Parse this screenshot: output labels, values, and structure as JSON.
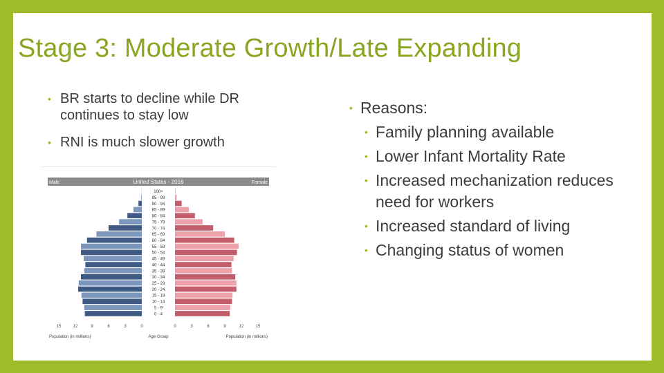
{
  "slide": {
    "title": "Stage 3: Moderate Growth/Late Expanding",
    "left_bullets": [
      "BR starts to decline while DR continues to stay low",
      "RNI is much slower growth"
    ],
    "right_heading": "Reasons:",
    "right_bullets": [
      "Family planning available",
      "Lower Infant Mortality Rate",
      "Increased mechanization reduces need for workers",
      "Increased standard of living",
      "Changing status of women"
    ],
    "bullet_glyph": "•"
  },
  "colors": {
    "frame": "#9fba2a",
    "title": "#8aa51f",
    "male_dark": "#3e5a85",
    "male_light": "#7d97bc",
    "female_dark": "#c25d6a",
    "female_light": "#eda2ab",
    "header_bar": "#8a8a8a"
  },
  "chart_data": {
    "type": "bar",
    "orientation": "horizontal-population-pyramid",
    "title": "United States - 2016",
    "left_label": "Male",
    "right_label": "Female",
    "xlabel_left": "Population (in millions)",
    "xlabel_center": "Age Group",
    "xlabel_right": "Population (in millions)",
    "x_ticks_left": [
      "15",
      "12",
      "9",
      "6",
      "3",
      "0"
    ],
    "x_ticks_right": [
      "0",
      "3",
      "6",
      "9",
      "12",
      "15"
    ],
    "xlim": [
      0,
      15
    ],
    "categories": [
      "0 - 4",
      "5 - 9",
      "10 - 14",
      "15 - 19",
      "20 - 24",
      "25 - 29",
      "30 - 34",
      "35 - 39",
      "40 - 44",
      "45 - 49",
      "50 - 54",
      "55 - 59",
      "60 - 64",
      "65 - 69",
      "70 - 74",
      "75 - 79",
      "80 - 84",
      "85 - 89",
      "90 - 94",
      "95 - 99",
      "100+"
    ],
    "series": [
      {
        "name": "Male",
        "values": [
          10.3,
          10.4,
          10.7,
          10.9,
          11.5,
          11.4,
          11.0,
          10.4,
          10.2,
          10.5,
          11.0,
          11.0,
          9.9,
          8.2,
          6.0,
          4.1,
          2.6,
          1.5,
          0.6,
          0.1,
          0.02
        ]
      },
      {
        "name": "Female",
        "values": [
          9.9,
          10.0,
          10.3,
          10.4,
          11.1,
          11.1,
          10.9,
          10.3,
          10.2,
          10.6,
          11.2,
          11.5,
          10.7,
          9.0,
          6.9,
          5.0,
          3.6,
          2.5,
          1.2,
          0.3,
          0.05
        ]
      }
    ]
  }
}
